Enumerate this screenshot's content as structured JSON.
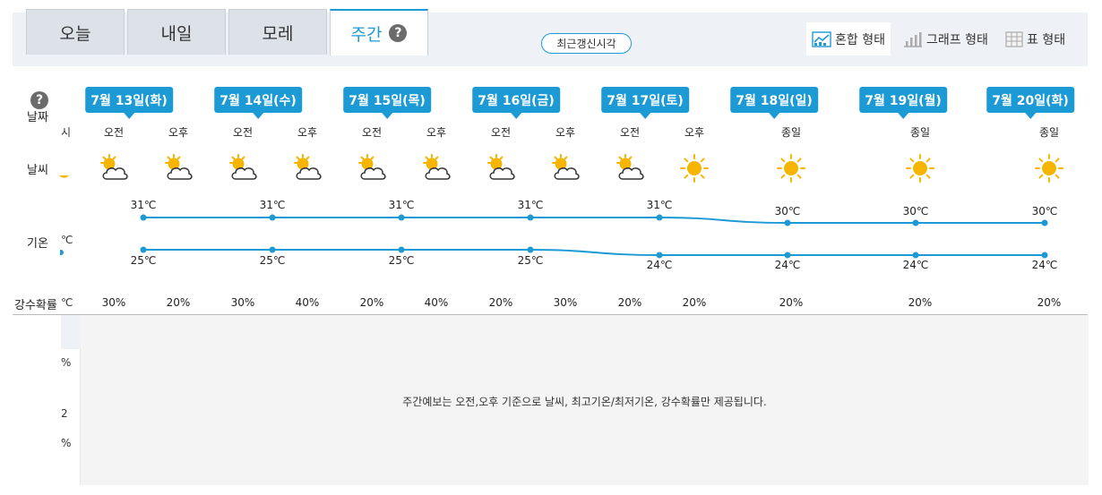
{
  "tabs": [
    {
      "label": "오늘"
    },
    {
      "label": "내일"
    },
    {
      "label": "모레"
    },
    {
      "label": "주간"
    }
  ],
  "refresh_label": "최근갱신시각",
  "view_options": [
    {
      "label": "혼합 형태",
      "icon": "mixed-chart-icon"
    },
    {
      "label": "그래프 형태",
      "icon": "bar-graph-icon"
    },
    {
      "label": "표 형태",
      "icon": "table-icon"
    }
  ],
  "row_labels": {
    "date": "날짜",
    "weather": "날씨",
    "temp": "기온",
    "precip": "강수확률"
  },
  "left_fragments": {
    "period": "시",
    "temp": "℃",
    "precip": "℃",
    "pct1": "%",
    "pct2": "%",
    "mark": "2"
  },
  "days": [
    {
      "date": "7월 13일(화)",
      "periods": [
        {
          "label": "오전",
          "icon": "sun-cloud",
          "prob": "30%"
        },
        {
          "label": "오후",
          "icon": "sun-cloud",
          "prob": "20%"
        }
      ],
      "max": "31℃",
      "min": "25℃"
    },
    {
      "date": "7월 14일(수)",
      "periods": [
        {
          "label": "오전",
          "icon": "sun-cloud",
          "prob": "30%"
        },
        {
          "label": "오후",
          "icon": "sun-cloud",
          "prob": "40%"
        }
      ],
      "max": "31℃",
      "min": "25℃"
    },
    {
      "date": "7월 15일(목)",
      "periods": [
        {
          "label": "오전",
          "icon": "sun-cloud",
          "prob": "20%"
        },
        {
          "label": "오후",
          "icon": "sun-cloud",
          "prob": "40%"
        }
      ],
      "max": "31℃",
      "min": "25℃"
    },
    {
      "date": "7월 16일(금)",
      "periods": [
        {
          "label": "오전",
          "icon": "sun-cloud",
          "prob": "20%"
        },
        {
          "label": "오후",
          "icon": "sun-cloud",
          "prob": "30%"
        }
      ],
      "max": "31℃",
      "min": "25℃"
    },
    {
      "date": "7월 17일(토)",
      "periods": [
        {
          "label": "오전",
          "icon": "sun-cloud",
          "prob": "20%"
        },
        {
          "label": "오후",
          "icon": "sun",
          "prob": "20%"
        }
      ],
      "max": "31℃",
      "min": "24℃"
    },
    {
      "date": "7월 18일(일)",
      "periods": [
        {
          "label": "종일",
          "icon": "sun",
          "prob": "20%"
        }
      ],
      "max": "30℃",
      "min": "24℃"
    },
    {
      "date": "7월 19일(월)",
      "periods": [
        {
          "label": "종일",
          "icon": "sun",
          "prob": "20%"
        }
      ],
      "max": "30℃",
      "min": "24℃"
    },
    {
      "date": "7월 20일(화)",
      "periods": [
        {
          "label": "종일",
          "icon": "sun",
          "prob": "20%"
        }
      ],
      "max": "30℃",
      "min": "24℃"
    }
  ],
  "chart_data": {
    "type": "line",
    "categories": [
      "7월 13일(화)",
      "7월 14일(수)",
      "7월 15일(목)",
      "7월 16일(금)",
      "7월 17일(토)",
      "7월 18일(일)",
      "7월 19일(월)",
      "7월 20일(화)"
    ],
    "series": [
      {
        "values": [
          31,
          31,
          31,
          31,
          31,
          30,
          30,
          30
        ]
      },
      {
        "values": [
          25,
          25,
          25,
          25,
          24,
          24,
          24,
          24
        ]
      }
    ],
    "ylabel": "기온",
    "line_color": "#1c9ad6"
  },
  "notice": "주간예보는 오전,오후 기준으로 날씨, 최고기온/최저기온, 강수확률만 제공됩니다.",
  "colors": {
    "accent": "#1c9ad6",
    "sun": "#f7b500"
  }
}
